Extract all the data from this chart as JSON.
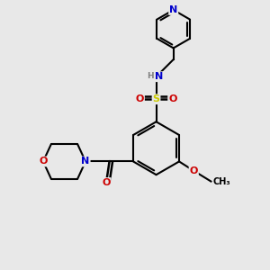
{
  "bg_color": "#e8e8e8",
  "bond_color": "#000000",
  "atom_colors": {
    "N": "#0000cc",
    "O": "#cc0000",
    "S": "#cccc00",
    "C": "#000000",
    "H": "#808080"
  },
  "figsize": [
    3.0,
    3.0
  ],
  "dpi": 100
}
